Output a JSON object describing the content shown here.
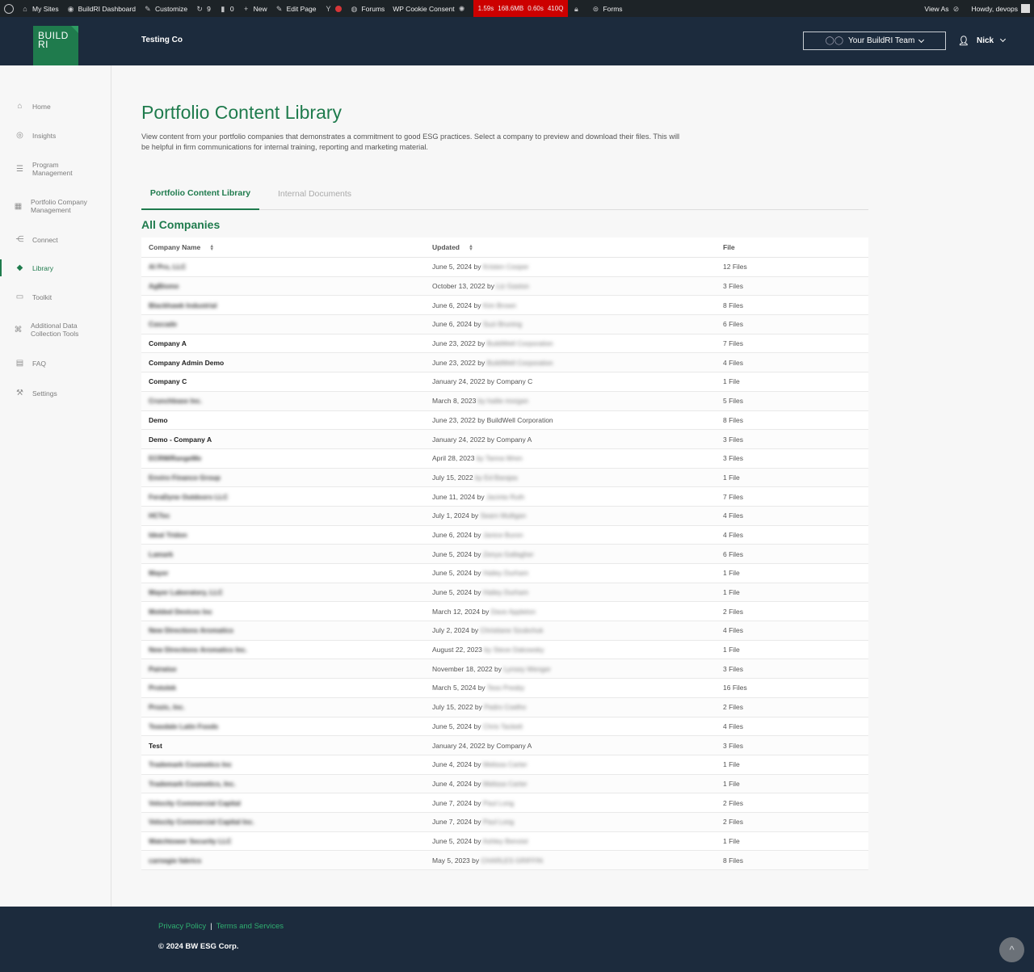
{
  "adminbar": {
    "my_sites": "My Sites",
    "dashboard": "BuildRI Dashboard",
    "customize": "Customize",
    "updates": "9",
    "comments": "0",
    "new": "New",
    "edit_page": "Edit Page",
    "forums": "Forums",
    "cookie": "WP Cookie Consent",
    "perf": [
      "1.59s",
      "168.6MB",
      "0.60s",
      "410Q"
    ],
    "forms": "Forms",
    "view_as": "View As",
    "howdy": "Howdy, devops"
  },
  "header": {
    "logo_line1": "BUILD",
    "logo_line2": "RI",
    "company": "Testing Co",
    "team_select": "Your BuildRI Team",
    "user": "Nick"
  },
  "sidebar": {
    "items": [
      {
        "label": "Home",
        "icon": "home-icon"
      },
      {
        "label": "Insights",
        "icon": "globe-icon"
      },
      {
        "label_1": "Program",
        "label_2": "Management",
        "icon": "list-icon"
      },
      {
        "label_1": "Portfolio Company",
        "label_2": "Management",
        "icon": "grid-icon"
      },
      {
        "label": "Connect",
        "icon": "network-icon"
      },
      {
        "label": "Library",
        "icon": "layers-icon"
      },
      {
        "label": "Toolkit",
        "icon": "toolbox-icon"
      },
      {
        "label_1": "Additional Data",
        "label_2": "Collection Tools",
        "icon": "command-icon"
      },
      {
        "label": "FAQ",
        "icon": "chat-icon"
      },
      {
        "label": "Settings",
        "icon": "wrench-icon"
      }
    ]
  },
  "main": {
    "title": "Portfolio Content Library",
    "description": "View content from your portfolio companies that demonstrates a commitment to good ESG practices. Select a company to preview and download their files. This will be helpful in firm communications for internal training, reporting and marketing material.",
    "tabs": [
      "Portfolio Content Library",
      "Internal Documents"
    ],
    "section_title": "All Companies",
    "columns": [
      "Company Name",
      "Updated",
      "File"
    ],
    "rows": [
      {
        "name": "Al Pro, LLC",
        "blur": true,
        "date": "June 5, 2024 by",
        "by": "Kristen Cooper",
        "by_blur": true,
        "files": "12 Files"
      },
      {
        "name": "AgBiome",
        "blur": true,
        "date": "October 13, 2022 by",
        "by": "Liz Gaston",
        "by_blur": true,
        "files": "3 Files"
      },
      {
        "name": "Blackhawk Industrial",
        "blur": true,
        "date": "June 6, 2024 by",
        "by": "Kim Brown",
        "by_blur": true,
        "files": "8 Files"
      },
      {
        "name": "Cascade",
        "blur": true,
        "date": "June 6, 2024 by",
        "by": "Suzi Bruning",
        "by_blur": true,
        "files": "6 Files"
      },
      {
        "name": "Company A",
        "blur": false,
        "date": "June 23, 2022 by",
        "by": "BuildWell Corporation",
        "by_blur": true,
        "files": "7 Files"
      },
      {
        "name": "Company Admin Demo",
        "blur": false,
        "date": "June 23, 2022 by",
        "by": "BuildWell Corporation",
        "by_blur": true,
        "files": "4 Files"
      },
      {
        "name": "Company C",
        "blur": false,
        "date": "January 24, 2022 by",
        "by": "Company C",
        "by_blur": false,
        "files": "1 File"
      },
      {
        "name": "Crunchbase Inc.",
        "blur": true,
        "date": "March 8, 2023",
        "by": "by hailie morgan",
        "by_blur": true,
        "files": "5 Files"
      },
      {
        "name": "Demo",
        "blur": false,
        "date": "June 23, 2022 by",
        "by": "BuildWell Corporation",
        "by_blur": false,
        "files": "8 Files"
      },
      {
        "name": "Demo - Company A",
        "blur": false,
        "date": "January 24, 2022 by",
        "by": "Company A",
        "by_blur": false,
        "files": "3 Files"
      },
      {
        "name": "ECRM/RangeMe",
        "blur": true,
        "date": "April 28, 2023",
        "by": "by Tanna Wren",
        "by_blur": true,
        "files": "3 Files"
      },
      {
        "name": "Enviro Finance Group",
        "blur": true,
        "date": "July 15, 2022",
        "by": "by Ed Barajas",
        "by_blur": true,
        "files": "1 File"
      },
      {
        "name": "FeraDyne Outdoors LLC",
        "blur": true,
        "date": "June 11, 2024 by",
        "by": "Jacinta Ruth",
        "by_blur": true,
        "files": "7 Files"
      },
      {
        "name": "HCTec",
        "blur": true,
        "date": "July 1, 2024 by",
        "by": "Searn Mulligan",
        "by_blur": true,
        "files": "4 Files"
      },
      {
        "name": "Ideal Tridon",
        "blur": true,
        "date": "June 6, 2024 by",
        "by": "Janice Buron",
        "by_blur": true,
        "files": "4 Files"
      },
      {
        "name": "Lamark",
        "blur": true,
        "date": "June 5, 2024 by",
        "by": "Zenya Gallagher",
        "by_blur": true,
        "files": "6 Files"
      },
      {
        "name": "Mayer",
        "blur": true,
        "date": "June 5, 2024 by",
        "by": "Hailey Durham",
        "by_blur": true,
        "files": "1 File"
      },
      {
        "name": "Mayer Laboratory, LLC",
        "blur": true,
        "date": "June 5, 2024 by",
        "by": "Hailey Durham",
        "by_blur": true,
        "files": "1 File"
      },
      {
        "name": "Molded Devices Inc",
        "blur": true,
        "date": "March 12, 2024 by",
        "by": "Dave Appleton",
        "by_blur": true,
        "files": "2 Files"
      },
      {
        "name": "New Directions Aromatics",
        "blur": true,
        "date": "July 2, 2024 by",
        "by": "Christiane Szubchuk",
        "by_blur": true,
        "files": "4 Files"
      },
      {
        "name": "New Directions Aromatics Inc.",
        "blur": true,
        "date": "August 22, 2023",
        "by": "by Steve Dakowsky",
        "by_blur": true,
        "files": "1 File"
      },
      {
        "name": "Pairwise",
        "blur": true,
        "date": "November 18, 2022 by",
        "by": "Lynsey Wenger",
        "by_blur": true,
        "files": "3 Files"
      },
      {
        "name": "Protolek",
        "blur": true,
        "date": "March 5, 2024 by",
        "by": "Tess Presby",
        "by_blur": true,
        "files": "16 Files"
      },
      {
        "name": "Prozic, Inc.",
        "blur": true,
        "date": "July 15, 2022 by",
        "by": "Pedro Coelho",
        "by_blur": true,
        "files": "2 Files"
      },
      {
        "name": "Teasdale Latin Foods",
        "blur": true,
        "date": "June 5, 2024 by",
        "by": "Chris Tackett",
        "by_blur": true,
        "files": "4 Files"
      },
      {
        "name": "Test",
        "blur": false,
        "date": "January 24, 2022 by",
        "by": "Company A",
        "by_blur": false,
        "files": "3 Files"
      },
      {
        "name": "Trademark Cosmetics Inc",
        "blur": true,
        "date": "June 4, 2024 by",
        "by": "Melissa Carter",
        "by_blur": true,
        "files": "1 File"
      },
      {
        "name": "Trademark Cosmetics, Inc.",
        "blur": true,
        "date": "June 4, 2024 by",
        "by": "Melissa Carter",
        "by_blur": true,
        "files": "1 File"
      },
      {
        "name": "Velocity Commercial Capital",
        "blur": true,
        "date": "June 7, 2024 by",
        "by": "Paul Long",
        "by_blur": true,
        "files": "2 Files"
      },
      {
        "name": "Velocity Commercial Capital Inc.",
        "blur": true,
        "date": "June 7, 2024 by",
        "by": "Paul Long",
        "by_blur": true,
        "files": "2 Files"
      },
      {
        "name": "Watchtower Security LLC",
        "blur": true,
        "date": "June 5, 2024 by",
        "by": "Ashley Benoist",
        "by_blur": true,
        "files": "1 File"
      },
      {
        "name": "carnegie fabrics",
        "blur": true,
        "date": "May 5, 2023 by",
        "by": "CHARLES GRIFFIN",
        "by_blur": true,
        "files": "8 Files"
      }
    ]
  },
  "footer": {
    "privacy": "Privacy Policy",
    "sep": "|",
    "terms": "Terms and Services",
    "copyright": "© 2024 BW ESG Corp.",
    "to_top": "^"
  }
}
